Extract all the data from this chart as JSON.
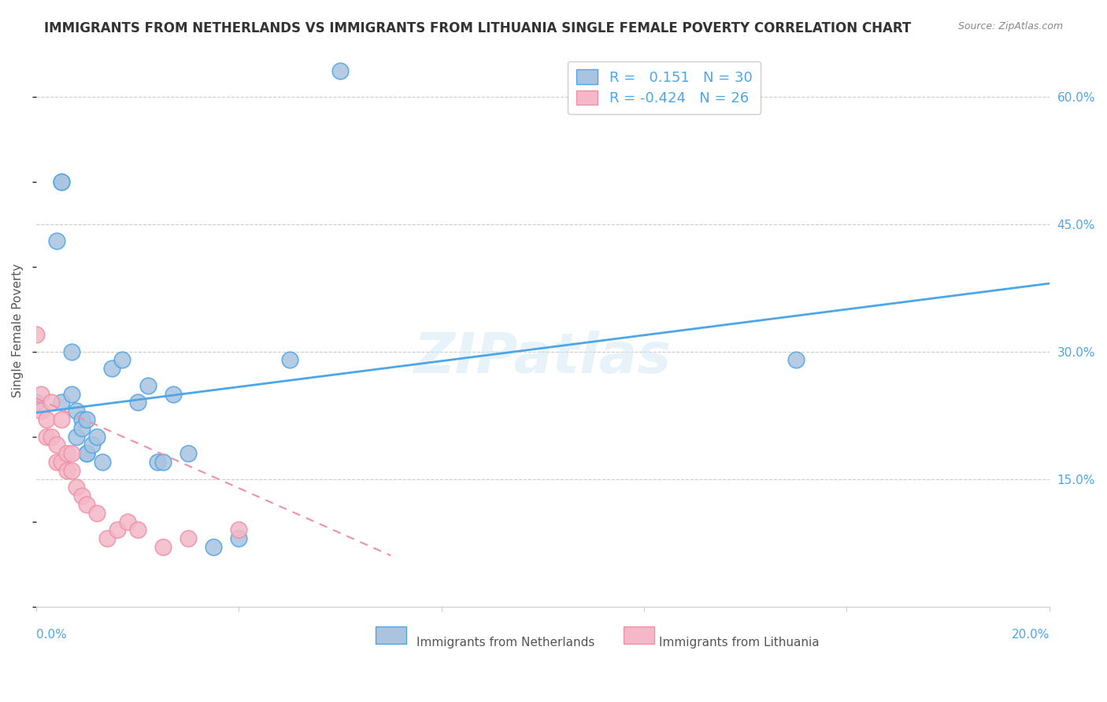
{
  "title": "IMMIGRANTS FROM NETHERLANDS VS IMMIGRANTS FROM LITHUANIA SINGLE FEMALE POVERTY CORRELATION CHART",
  "source": "Source: ZipAtlas.com",
  "ylabel": "Single Female Poverty",
  "right_ytick_vals": [
    0.6,
    0.45,
    0.3,
    0.15
  ],
  "netherlands_color": "#aac4e0",
  "lithuania_color": "#f4b8c8",
  "netherlands_line_color": "#4da6e8",
  "lithuania_line_color": "#f090a8",
  "watermark": "ZIPatlas",
  "netherlands_x": [
    0.0,
    0.004,
    0.005,
    0.005,
    0.005,
    0.007,
    0.007,
    0.008,
    0.008,
    0.009,
    0.009,
    0.01,
    0.01,
    0.01,
    0.011,
    0.012,
    0.013,
    0.015,
    0.017,
    0.02,
    0.022,
    0.024,
    0.025,
    0.027,
    0.03,
    0.035,
    0.04,
    0.05,
    0.06,
    0.15
  ],
  "netherlands_y": [
    0.24,
    0.43,
    0.5,
    0.5,
    0.24,
    0.3,
    0.25,
    0.23,
    0.2,
    0.22,
    0.21,
    0.22,
    0.18,
    0.18,
    0.19,
    0.2,
    0.17,
    0.28,
    0.29,
    0.24,
    0.26,
    0.17,
    0.17,
    0.25,
    0.18,
    0.07,
    0.08,
    0.29,
    0.63,
    0.29
  ],
  "lithuania_x": [
    0.0,
    0.001,
    0.001,
    0.002,
    0.002,
    0.003,
    0.003,
    0.004,
    0.004,
    0.005,
    0.005,
    0.006,
    0.006,
    0.007,
    0.007,
    0.008,
    0.009,
    0.01,
    0.012,
    0.014,
    0.016,
    0.018,
    0.02,
    0.025,
    0.03,
    0.04
  ],
  "lithuania_y": [
    0.32,
    0.25,
    0.23,
    0.22,
    0.2,
    0.24,
    0.2,
    0.19,
    0.17,
    0.22,
    0.17,
    0.18,
    0.16,
    0.18,
    0.16,
    0.14,
    0.13,
    0.12,
    0.11,
    0.08,
    0.09,
    0.1,
    0.09,
    0.07,
    0.08,
    0.09
  ],
  "xlim": [
    0.0,
    0.2
  ],
  "ylim": [
    0.0,
    0.65
  ],
  "nl_trend_x": [
    0.0,
    0.2
  ],
  "nl_trend_y": [
    0.228,
    0.38
  ],
  "lt_trend_x": [
    0.0,
    0.07
  ],
  "lt_trend_y": [
    0.245,
    0.06
  ],
  "xtick_minor": [
    0.04,
    0.08,
    0.12,
    0.16
  ]
}
